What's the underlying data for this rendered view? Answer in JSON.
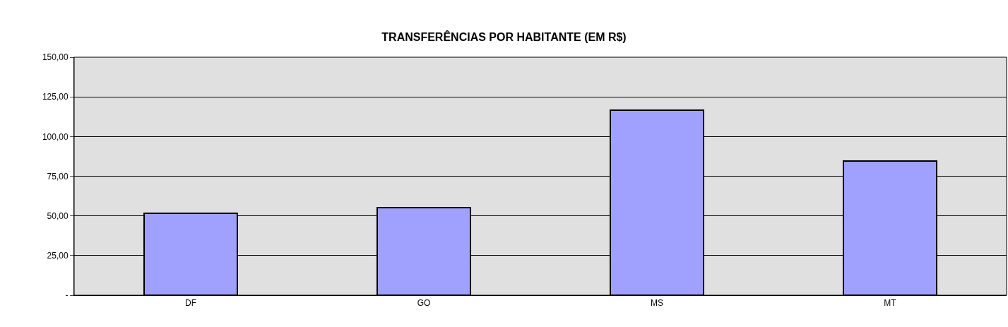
{
  "chart_data": {
    "type": "bar",
    "title": "TRANSFERÊNCIAS POR HABITANTE (EM R$)",
    "categories": [
      "DF",
      "GO",
      "MS",
      "MT"
    ],
    "values": [
      51.6,
      55.2,
      116.6,
      84.6
    ],
    "color": "#a0a0ff",
    "ylim": [
      0,
      150
    ],
    "yticks": [
      {
        "value": 0,
        "label": "-"
      },
      {
        "value": 25,
        "label": "25,00"
      },
      {
        "value": 50,
        "label": "50,00"
      },
      {
        "value": 75,
        "label": "75,00"
      },
      {
        "value": 100,
        "label": "100,00"
      },
      {
        "value": 125,
        "label": "125,00"
      },
      {
        "value": 150,
        "label": "150,00"
      }
    ],
    "grid": "y"
  }
}
